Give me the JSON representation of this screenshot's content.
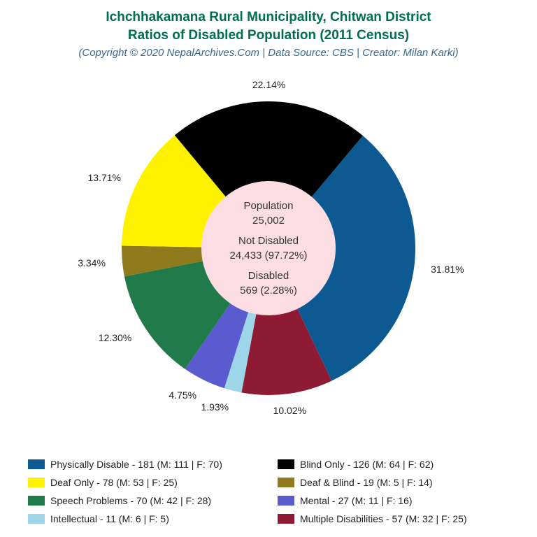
{
  "title": {
    "line1": "Ichchhakamana Rural Municipality, Chitwan District",
    "line2": "Ratios of Disabled Population (2011 Census)",
    "color": "#006e52",
    "fontsize": 19
  },
  "subtitle": {
    "text": "(Copyright © 2020 NepalArchives.Com | Data Source: CBS | Creator: Milan Karki)",
    "color": "#38668e",
    "fontsize": 15
  },
  "chart": {
    "type": "pie",
    "outer_radius": 210,
    "inner_radius": 96,
    "inner_fill": "#fcdde4",
    "start_angle_deg": -50,
    "direction": "clockwise",
    "background": "#ffffff",
    "label_fontsize": 14,
    "label_color": "#222222"
  },
  "center": {
    "text_color": "#333333",
    "lines": [
      {
        "l1": "Population",
        "l2": "25,002"
      },
      {
        "l1": "Not Disabled",
        "l2": "24,433 (97.72%)"
      },
      {
        "l1": "Disabled",
        "l2": "569 (2.28%)"
      }
    ]
  },
  "slices": [
    {
      "key": "physically",
      "label": "Physically Disable",
      "count": 181,
      "male": 111,
      "female": 70,
      "pct": 31.81,
      "color": "#0d5a93"
    },
    {
      "key": "multiple",
      "label": "Multiple Disabilities",
      "count": 57,
      "male": 32,
      "female": 25,
      "pct": 10.02,
      "color": "#8f1a33"
    },
    {
      "key": "intellectual",
      "label": "Intellectual",
      "count": 11,
      "male": 6,
      "female": 5,
      "pct": 1.93,
      "color": "#9cd6e8"
    },
    {
      "key": "mental",
      "label": "Mental",
      "count": 27,
      "male": 11,
      "female": 16,
      "pct": 4.75,
      "color": "#5b5bd0"
    },
    {
      "key": "speech",
      "label": "Speech Problems",
      "count": 70,
      "male": 42,
      "female": 28,
      "pct": 12.3,
      "color": "#217a4a"
    },
    {
      "key": "deafblind",
      "label": "Deaf & Blind",
      "count": 19,
      "male": 5,
      "female": 14,
      "pct": 3.34,
      "color": "#8f7a1e"
    },
    {
      "key": "deaf",
      "label": "Deaf Only",
      "count": 78,
      "male": 53,
      "female": 25,
      "pct": 13.71,
      "color": "#fff200"
    },
    {
      "key": "blind",
      "label": "Blind Only",
      "count": 126,
      "male": 64,
      "female": 62,
      "pct": 22.14,
      "color": "#000000"
    }
  ],
  "legend_order": [
    "physically",
    "blind",
    "deaf",
    "deafblind",
    "speech",
    "mental",
    "intellectual",
    "multiple"
  ],
  "legend": {
    "fontsize": 14,
    "swatch_w": 24,
    "swatch_h": 14
  }
}
